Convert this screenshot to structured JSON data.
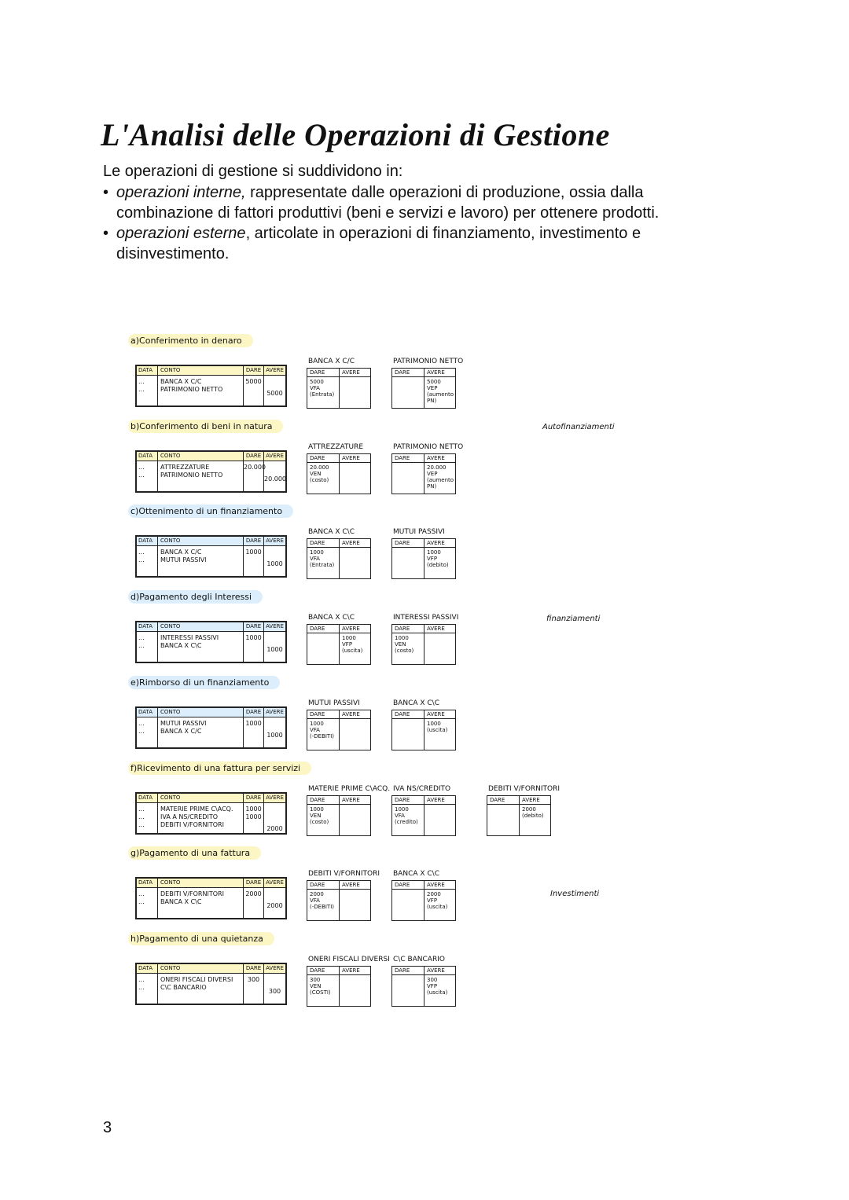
{
  "title": "L'Analisi delle Operazioni di Gestione",
  "intro": "Le operazioni di gestione si suddividono in:",
  "bullets": [
    {
      "em": "operazioni interne,",
      "text": " rappresentate dalle operazioni di produzione, ossia dalla combinazione di fattori produttivi (beni e servizi e lavoro) per ottenere prodotti."
    },
    {
      "em": "operazioni esterne",
      "text": ", articolate in operazioni di finanziamento, investimento e disinvestimento."
    }
  ],
  "journal_headers": [
    "DATA",
    "CONTO",
    "DARE",
    "AVERE"
  ],
  "t_headers": [
    "DARE",
    "AVERE"
  ],
  "sections": [
    {
      "label": "a)Conferimento in denaro",
      "color": "#fbf6c4",
      "rows": [
        [
          "...",
          "BANCA X C/C",
          "5000",
          null
        ],
        [
          "...",
          "PATRIMONIO NETTO",
          null,
          "5000"
        ]
      ],
      "accounts": [
        {
          "title": "BANCA X C/C",
          "dare": [
            "5000",
            "VFA",
            "(Entrata)"
          ],
          "avere": []
        },
        {
          "title": "PATRIMONIO NETTO",
          "dare": [],
          "avere": [
            "5000",
            "VEP",
            "(aumento",
            "PN)"
          ]
        }
      ]
    },
    {
      "label": "b)Conferimento di beni in natura",
      "color": "#fbf6c4",
      "rows": [
        [
          "...",
          "ATTREZZATURE",
          "20.000",
          null
        ],
        [
          "...",
          "PATRIMONIO NETTO",
          null,
          "20.000"
        ]
      ],
      "accounts": [
        {
          "title": "ATTREZZATURE",
          "dare": [
            "20.000",
            "VEN",
            "(costo)"
          ],
          "avere": []
        },
        {
          "title": "PATRIMONIO NETTO",
          "dare": [],
          "avere": [
            "20.000",
            "VEP",
            "(aumento",
            "PN)"
          ]
        }
      ]
    },
    {
      "label": "c)Ottenimento di un finanziamento",
      "color": "#dceefb",
      "rows": [
        [
          "...",
          "BANCA X C/C",
          "1000",
          null
        ],
        [
          "...",
          "MUTUI PASSIVI",
          null,
          "1000"
        ]
      ],
      "accounts": [
        {
          "title": "BANCA X C\\C",
          "dare": [
            "1000",
            "VFA",
            "(Entrata)"
          ],
          "avere": []
        },
        {
          "title": "MUTUI PASSIVI",
          "dare": [],
          "avere": [
            "1000",
            "VFP",
            "(debito)"
          ]
        }
      ]
    },
    {
      "label": "d)Pagamento degli Interessi",
      "color": "#dceefb",
      "rows": [
        [
          "...",
          "INTERESSI PASSIVI",
          "1000",
          null
        ],
        [
          "...",
          "BANCA X C\\C",
          null,
          "1000"
        ]
      ],
      "accounts": [
        {
          "title": "BANCA X C\\C",
          "dare": [],
          "avere": [
            "1000",
            "VFP",
            "(uscita)"
          ]
        },
        {
          "title": "INTERESSI PASSIVI",
          "dare": [
            "1000",
            "VEN",
            "(costo)"
          ],
          "avere": []
        }
      ]
    },
    {
      "label": "e)Rimborso di un finanziamento",
      "color": "#dceefb",
      "rows": [
        [
          "...",
          "MUTUI PASSIVI",
          "1000",
          null
        ],
        [
          "...",
          "BANCA X C/C",
          null,
          "1000"
        ]
      ],
      "accounts": [
        {
          "title": "MUTUI PASSIVI",
          "dare": [
            "1000",
            "VFA",
            "(-DEBITI)"
          ],
          "avere": []
        },
        {
          "title": "BANCA X C\\C",
          "dare": [],
          "avere": [
            "1000",
            "(uscita)"
          ]
        }
      ]
    },
    {
      "label": "f)Ricevimento di una fattura per servizi",
      "color": "#fbf6c4",
      "rows": [
        [
          "...",
          "MATERIE PRIME C\\ACQ.",
          "1000",
          null
        ],
        [
          "...",
          "IVA A NS/CREDITO",
          "1000",
          null
        ],
        [
          "...",
          "DEBITI V/FORNITORI",
          null,
          "2000"
        ]
      ],
      "accounts": [
        {
          "title": "MATERIE PRIME C\\ACQ.",
          "dare": [
            "1000",
            "VEN",
            "(costo)"
          ],
          "avere": []
        },
        {
          "title": "IVA NS/CREDITO",
          "dare": [
            "1000",
            "VFA",
            "(credito)"
          ],
          "avere": []
        },
        {
          "title": "DEBITI V/FORNITORI",
          "dare": [],
          "avere": [
            "2000",
            "(debito)"
          ]
        }
      ]
    },
    {
      "label": "g)Pagamento di una fattura",
      "color": "#fbf6c4",
      "rows": [
        [
          "...",
          "DEBITI V/FORNITORI",
          "2000",
          null
        ],
        [
          "...",
          "BANCA X C\\C",
          null,
          "2000"
        ]
      ],
      "accounts": [
        {
          "title": "DEBITI V/FORNITORI",
          "dare": [
            "2000",
            "VFA",
            "(-DEBITI)"
          ],
          "avere": []
        },
        {
          "title": "BANCA X C\\C",
          "dare": [],
          "avere": [
            "2000",
            "VFP",
            "(uscita)"
          ]
        }
      ]
    },
    {
      "label": "h)Pagamento di una quietanza",
      "color": "#fbf6c4",
      "rows": [
        [
          "...",
          "ONERI FISCALI DIVERSI",
          "300",
          null
        ],
        [
          "...",
          "C\\C BANCARIO",
          null,
          "300"
        ]
      ],
      "accounts": [
        {
          "title": "ONERI FISCALI DIVERSI",
          "dare": [
            "300",
            "VEN",
            "(COSTI)"
          ],
          "avere": []
        },
        {
          "title": "C\\C BANCARIO",
          "dare": [],
          "avere": [
            "300",
            "VFP",
            "(uscita)"
          ]
        }
      ]
    }
  ],
  "notes": [
    "Autofinanziamenti",
    "finanziamenti",
    "Investimenti"
  ],
  "page_number": "3"
}
